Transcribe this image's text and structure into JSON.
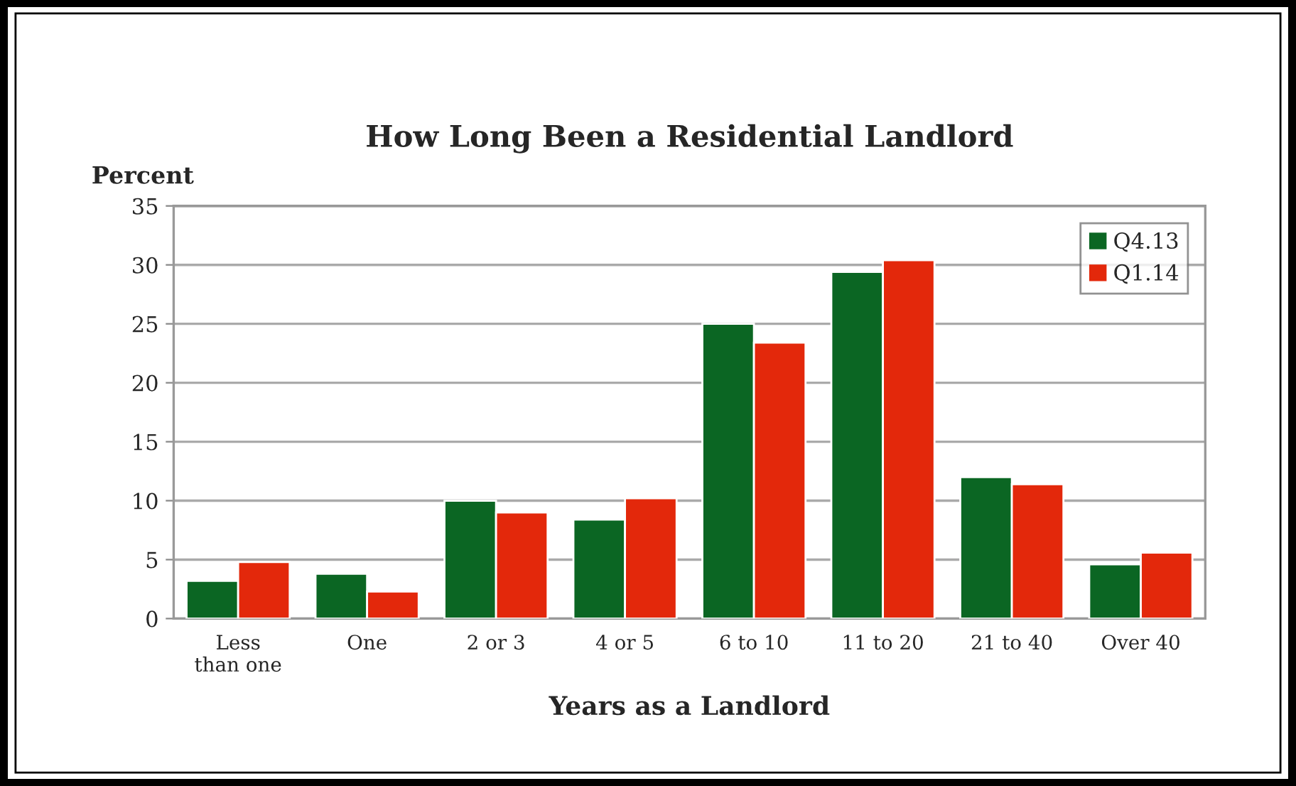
{
  "chart_data": {
    "type": "bar",
    "title": "How Long Been a Residential Landlord",
    "xlabel": "Years as a Landlord",
    "ylabel": "Percent",
    "categories": [
      "Less\nthan one",
      "One",
      "2 or 3",
      "4 or 5",
      "6 to 10",
      "11 to 20",
      "21 to 40",
      "Over 40"
    ],
    "series": [
      {
        "name": "Q4.13",
        "color": "#0b6623",
        "values": [
          3.2,
          3.8,
          10.0,
          8.4,
          25.0,
          29.4,
          12.0,
          4.6
        ]
      },
      {
        "name": "Q1.14",
        "color": "#e3280b",
        "values": [
          4.8,
          2.3,
          9.0,
          10.2,
          23.4,
          30.4,
          11.4,
          5.6
        ]
      }
    ],
    "ylim": [
      0,
      35
    ],
    "yticks": [
      0,
      5,
      10,
      15,
      20,
      25,
      30,
      35
    ],
    "grid": "y",
    "legend": "top right"
  }
}
